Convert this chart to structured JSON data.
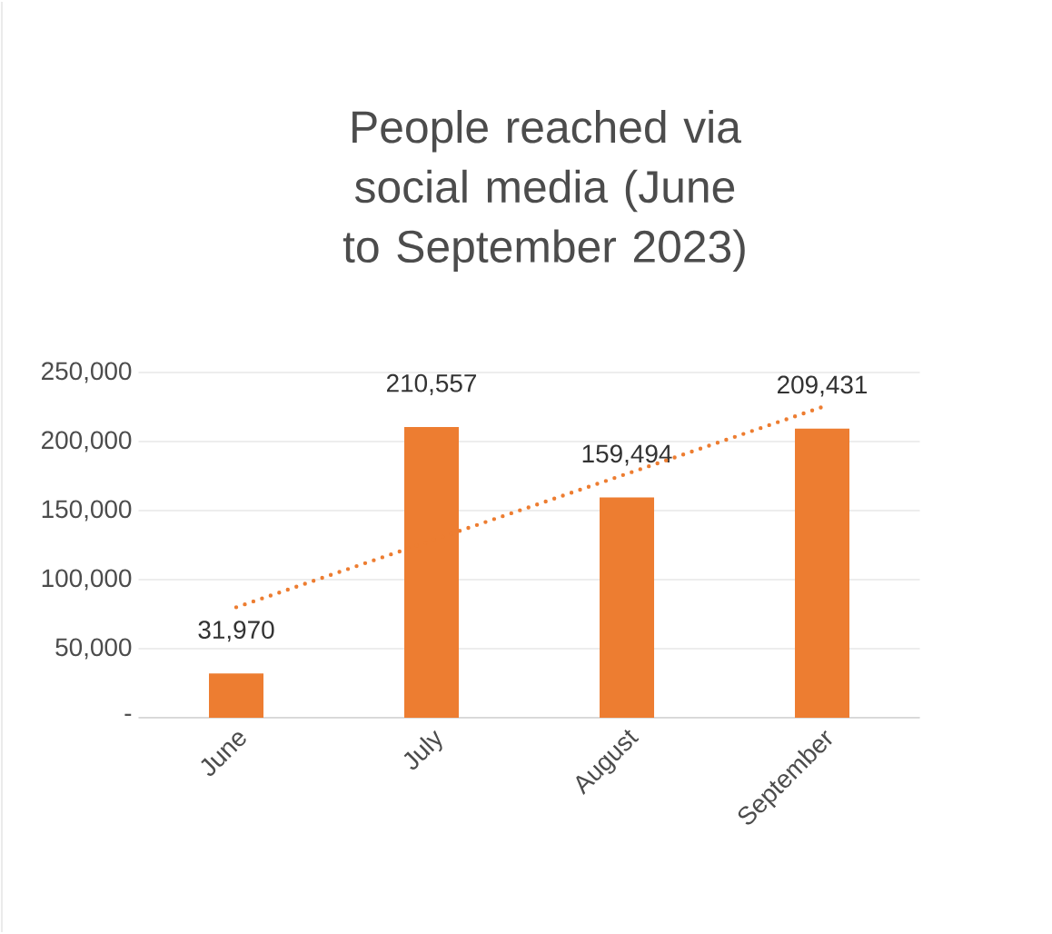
{
  "chart_data": {
    "type": "bar",
    "title": "People reached via social media (June to September 2023)",
    "categories": [
      "June",
      "July",
      "August",
      "September"
    ],
    "series": [
      {
        "color": "#ed7d31",
        "values": [
          31970,
          210557,
          159494,
          209431
        ],
        "value_labels": [
          "31,970",
          "210,557",
          "159,494",
          "209,431"
        ]
      },
      {
        "type": "line",
        "x": [
          "June",
          "September"
        ],
        "values": [
          80000,
          225000
        ],
        "color": "#ed7d31",
        "line_style": "dotted"
      }
    ],
    "ylim": [
      0,
      250000
    ],
    "yticks": [
      {
        "value": 0,
        "label": "-"
      },
      {
        "value": 50000,
        "label": "50,000"
      },
      {
        "value": 100000,
        "label": "100,000"
      },
      {
        "value": 150000,
        "label": "150,000"
      },
      {
        "value": 200000,
        "label": "200,000"
      },
      {
        "value": 250000,
        "label": "250,000"
      }
    ],
    "grid": "y"
  }
}
